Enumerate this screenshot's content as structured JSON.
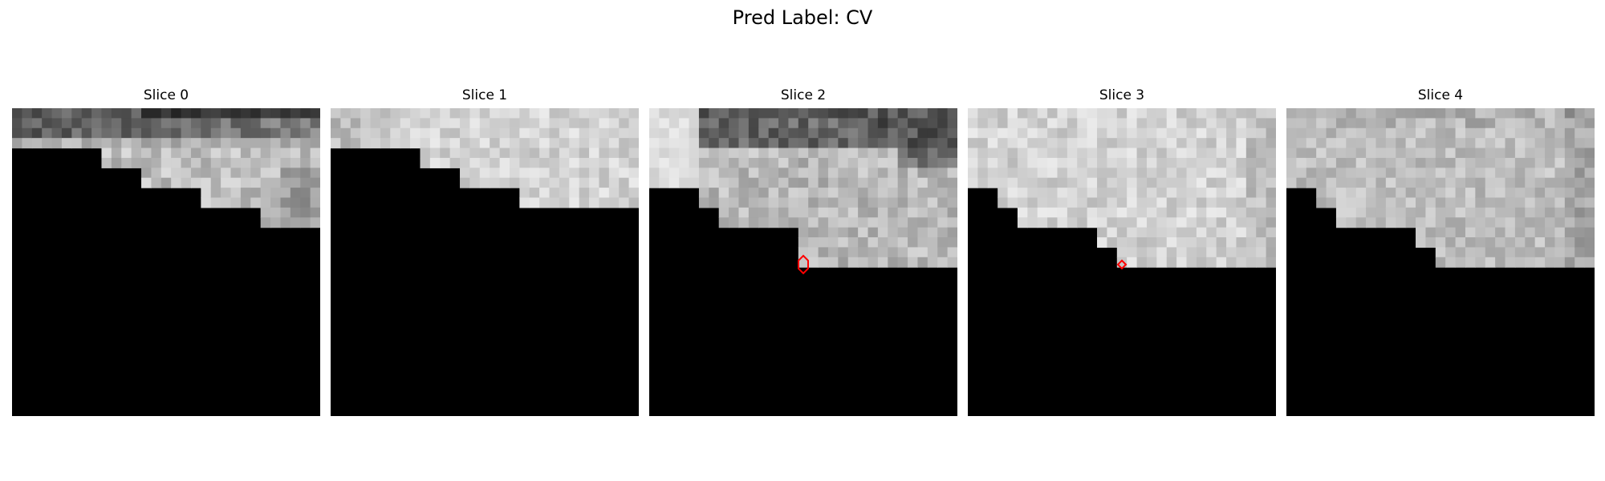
{
  "figure": {
    "title": "Pred Label: CV"
  },
  "slices": [
    {
      "title": "Slice 0"
    },
    {
      "title": "Slice 1"
    },
    {
      "title": "Slice 2"
    },
    {
      "title": "Slice 3"
    },
    {
      "title": "Slice 4"
    }
  ],
  "colors": {
    "mask": "#000000",
    "annotation": "#ff0000"
  }
}
